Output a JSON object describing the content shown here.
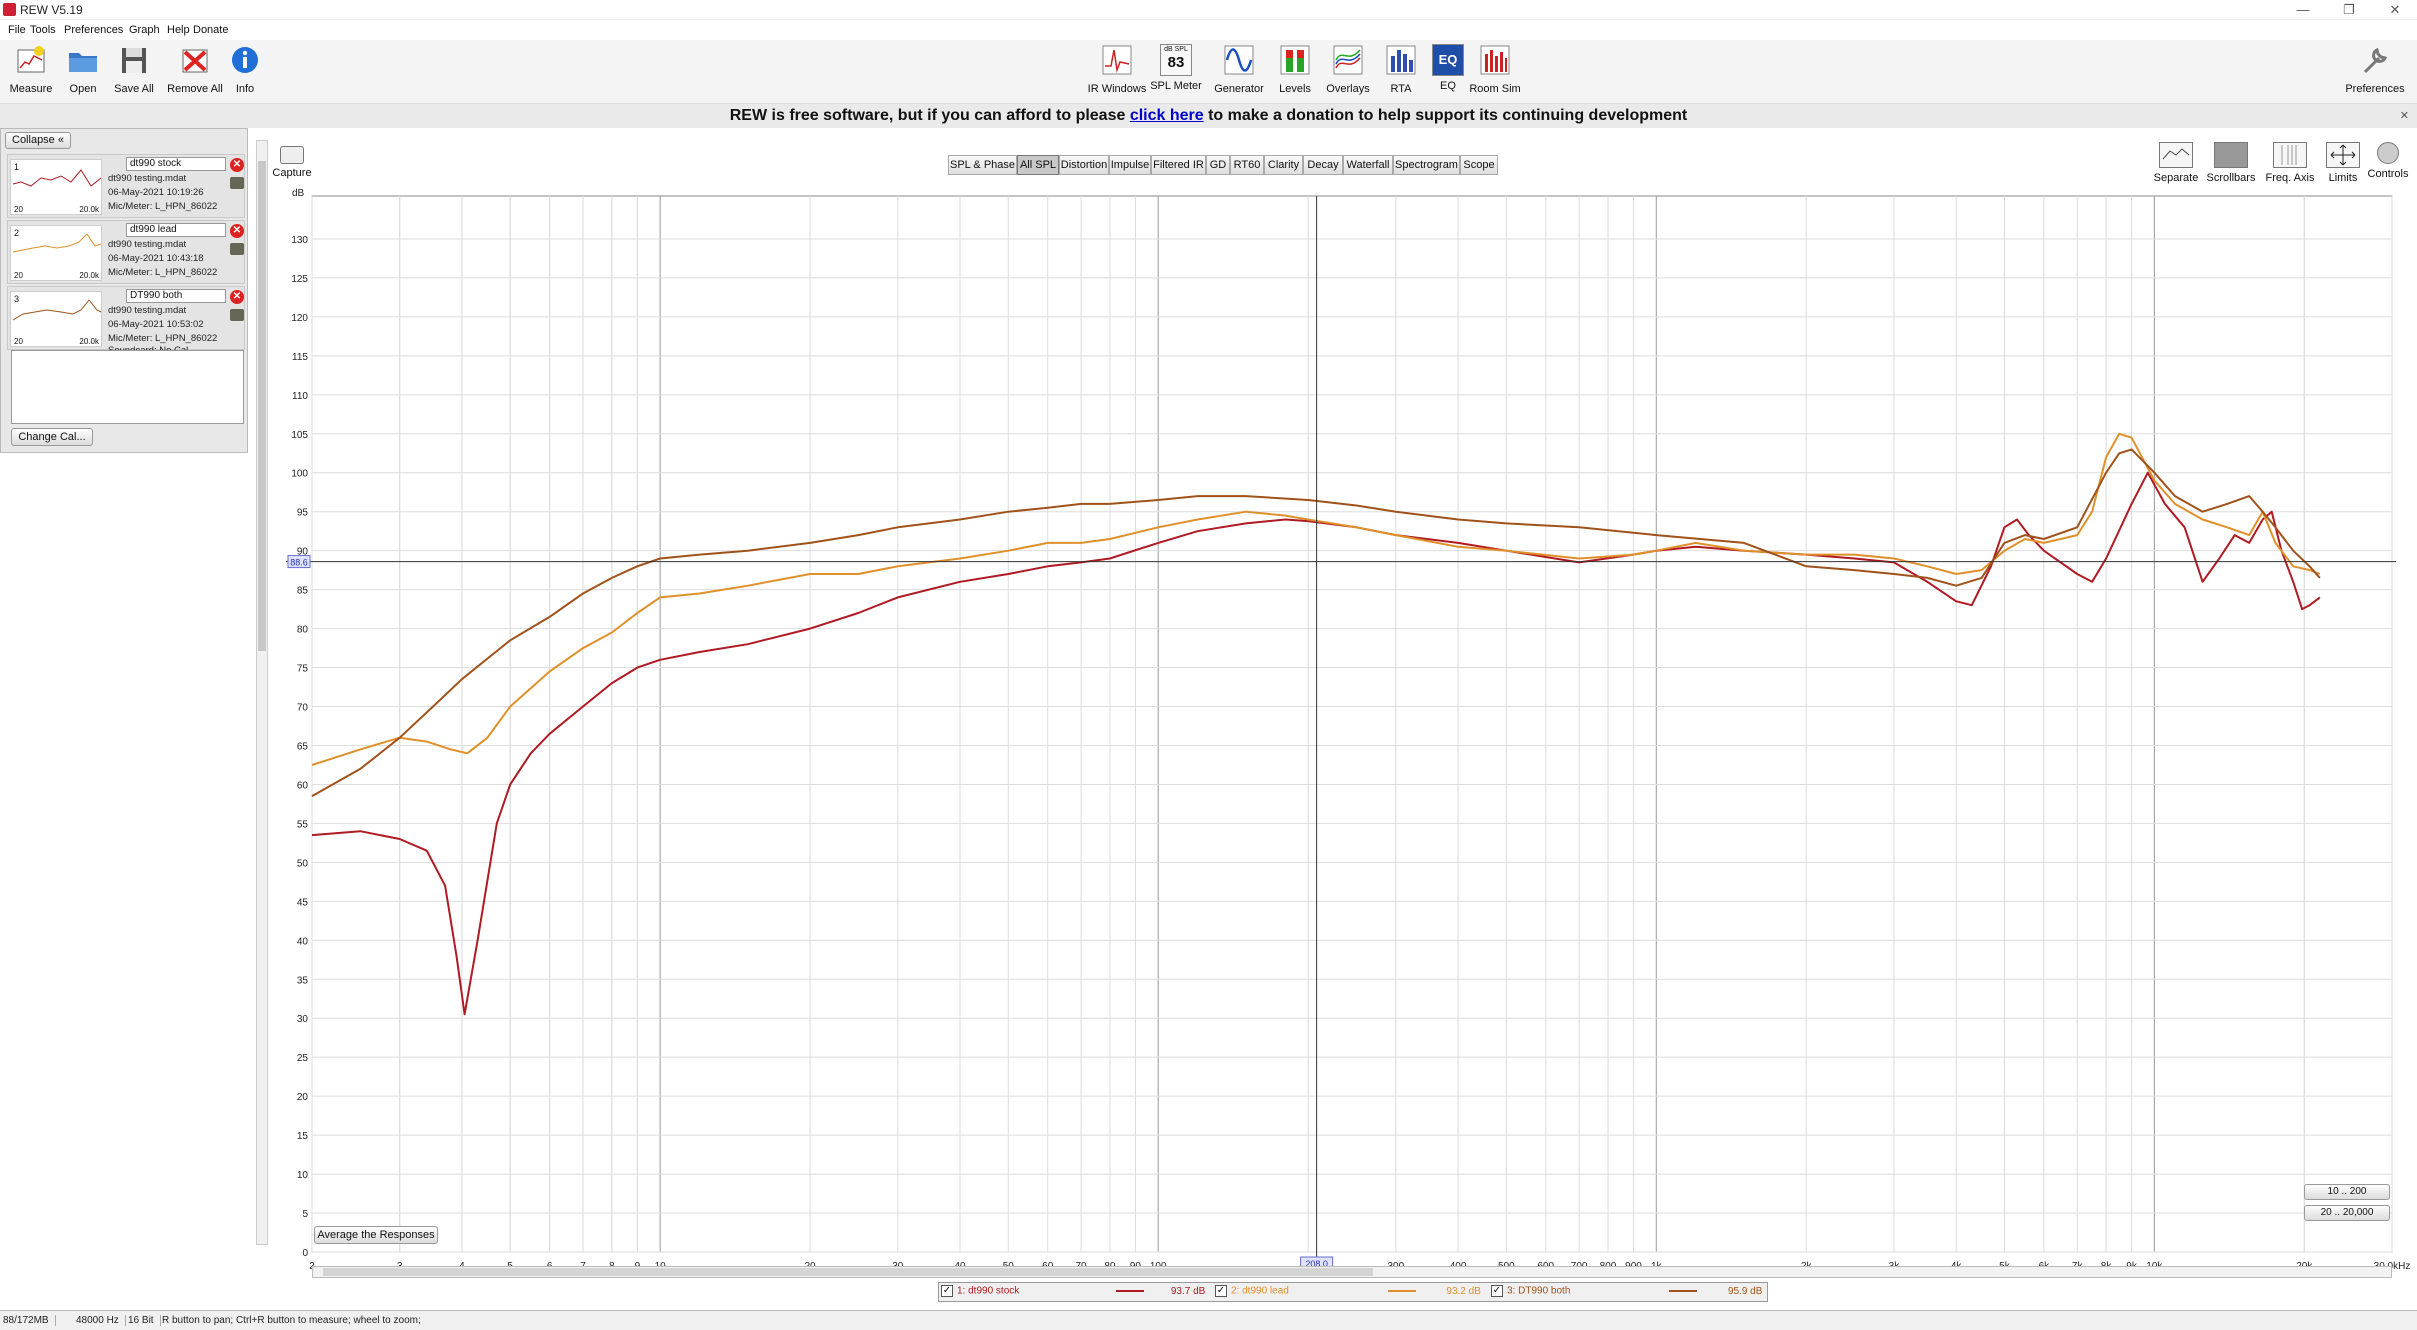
{
  "window": {
    "title": "REW V5.19",
    "controls": [
      "—",
      "❐",
      "✕"
    ]
  },
  "menu": [
    "File",
    "Tools",
    "Preferences",
    "Graph",
    "Help",
    "Donate"
  ],
  "toolbar_left": [
    {
      "label": "Measure",
      "icon": "measure-icon"
    },
    {
      "label": "Open",
      "icon": "folder-icon"
    },
    {
      "label": "Save All",
      "icon": "save-icon"
    },
    {
      "label": "Remove All",
      "icon": "remove-icon"
    },
    {
      "label": "Info",
      "icon": "info-icon"
    }
  ],
  "toolbar_center": [
    {
      "label": "IR Windows",
      "icon": "ir-windows-icon"
    },
    {
      "label": "SPL Meter",
      "icon": "spl-meter-icon",
      "badge_top": "dB SPL",
      "badge": "83"
    },
    {
      "label": "Generator",
      "icon": "generator-icon"
    },
    {
      "label": "Levels",
      "icon": "levels-icon"
    },
    {
      "label": "Overlays",
      "icon": "overlays-icon"
    },
    {
      "label": "RTA",
      "icon": "rta-icon"
    },
    {
      "label": "EQ",
      "icon": "eq-icon"
    },
    {
      "label": "Room Sim",
      "icon": "room-sim-icon"
    }
  ],
  "toolbar_right": {
    "label": "Preferences",
    "icon": "wrench-icon"
  },
  "banner": {
    "before": "REW is free software, but if you can afford to please ",
    "link": "click here",
    "after": " to make a donation to help support its continuing development"
  },
  "left_panel": {
    "collapse_label": "Collapse",
    "measurements": [
      {
        "index": "1",
        "name": "dt990 stock",
        "file": "dt990 testing.mdat",
        "date": "06-May-2021 10:19:26",
        "mic": "Mic/Meter: L_HPN_86022",
        "thumb_lo": "20",
        "thumb_hi": "20.0k",
        "color": "#b01a22"
      },
      {
        "index": "2",
        "name": "dt990 lead",
        "file": "dt990 testing.mdat",
        "date": "06-May-2021 10:43:18",
        "mic": "Mic/Meter: L_HPN_86022",
        "thumb_lo": "20",
        "thumb_hi": "20.0k",
        "color": "#e0902a"
      },
      {
        "index": "3",
        "name": "DT990 both",
        "file": "dt990 testing.mdat",
        "date": "06-May-2021 10:53:02",
        "mic": "Mic/Meter: L_HPN_86022",
        "soundcard": "Soundcard: No Cal",
        "thumb_lo": "20",
        "thumb_hi": "20.0k",
        "color": "#a0521a"
      }
    ],
    "change_cal_label": "Change Cal..."
  },
  "capture_label": "Capture",
  "plot_tabs": [
    "SPL & Phase",
    "All SPL",
    "Distortion",
    "Impulse",
    "Filtered IR",
    "GD",
    "RT60",
    "Clarity",
    "Decay",
    "Waterfall",
    "Spectrogram",
    "Scope"
  ],
  "active_tab": "All SPL",
  "right_tools": [
    {
      "label": "Separate",
      "icon": "separate-icon"
    },
    {
      "label": "Scrollbars",
      "icon": "scrollbars-icon"
    },
    {
      "label": "Freq. Axis",
      "icon": "freq-axis-icon"
    },
    {
      "label": "Limits",
      "icon": "limits-icon"
    },
    {
      "label": "Controls",
      "icon": "controls-icon"
    }
  ],
  "graph_buttons": {
    "average": "Average the Responses",
    "range1": "10 .. 200",
    "range2": "20 .. 20,000"
  },
  "cursor": {
    "level_label": "88.6",
    "freq_label": "208.0"
  },
  "chart_data": {
    "type": "line",
    "ylabel": "dB",
    "xlog": true,
    "xlim": [
      2,
      30000
    ],
    "ylim": [
      0,
      135
    ],
    "yticks": [
      0,
      5,
      10,
      15,
      20,
      25,
      30,
      35,
      40,
      45,
      50,
      55,
      60,
      65,
      70,
      75,
      80,
      85,
      90,
      95,
      100,
      105,
      110,
      115,
      120,
      125,
      130
    ],
    "xticks": [
      {
        "v": 2,
        "l": "2"
      },
      {
        "v": 3,
        "l": "3"
      },
      {
        "v": 4,
        "l": "4"
      },
      {
        "v": 5,
        "l": "5"
      },
      {
        "v": 6,
        "l": "6"
      },
      {
        "v": 7,
        "l": "7"
      },
      {
        "v": 8,
        "l": "8"
      },
      {
        "v": 9,
        "l": "9"
      },
      {
        "v": 10,
        "l": "10"
      },
      {
        "v": 20,
        "l": "20"
      },
      {
        "v": 30,
        "l": "30"
      },
      {
        "v": 40,
        "l": "40"
      },
      {
        "v": 50,
        "l": "50"
      },
      {
        "v": 60,
        "l": "60"
      },
      {
        "v": 70,
        "l": "70"
      },
      {
        "v": 80,
        "l": "80"
      },
      {
        "v": 90,
        "l": "90"
      },
      {
        "v": 100,
        "l": "100"
      },
      {
        "v": 300,
        "l": "300"
      },
      {
        "v": 400,
        "l": "400"
      },
      {
        "v": 500,
        "l": "500"
      },
      {
        "v": 600,
        "l": "600"
      },
      {
        "v": 700,
        "l": "700"
      },
      {
        "v": 800,
        "l": "800"
      },
      {
        "v": 900,
        "l": "900"
      },
      {
        "v": 1000,
        "l": "1k"
      },
      {
        "v": 2000,
        "l": "2k"
      },
      {
        "v": 3000,
        "l": "3k"
      },
      {
        "v": 4000,
        "l": "4k"
      },
      {
        "v": 5000,
        "l": "5k"
      },
      {
        "v": 6000,
        "l": "6k"
      },
      {
        "v": 7000,
        "l": "7k"
      },
      {
        "v": 8000,
        "l": "8k"
      },
      {
        "v": 9000,
        "l": "9k"
      },
      {
        "v": 10000,
        "l": "10k"
      },
      {
        "v": 20000,
        "l": "20k"
      },
      {
        "v": 30000,
        "l": "30.0kHz"
      }
    ],
    "cursor_level": 88.6,
    "cursor_freq": 208,
    "series": [
      {
        "name": "1: dt990 stock",
        "level": "93.7 dB",
        "color": "#b01a22",
        "points": [
          [
            2,
            53.5
          ],
          [
            2.5,
            54
          ],
          [
            3,
            53
          ],
          [
            3.4,
            51.5
          ],
          [
            3.7,
            47
          ],
          [
            3.9,
            38
          ],
          [
            4.05,
            30.5
          ],
          [
            4.3,
            40
          ],
          [
            4.7,
            55
          ],
          [
            5,
            60
          ],
          [
            5.5,
            64
          ],
          [
            6,
            66.5
          ],
          [
            7,
            70
          ],
          [
            8,
            73
          ],
          [
            9,
            75
          ],
          [
            10,
            76
          ],
          [
            12,
            77
          ],
          [
            15,
            78
          ],
          [
            20,
            80
          ],
          [
            25,
            82
          ],
          [
            30,
            84
          ],
          [
            40,
            86
          ],
          [
            50,
            87
          ],
          [
            60,
            88
          ],
          [
            70,
            88.5
          ],
          [
            80,
            89
          ],
          [
            100,
            91
          ],
          [
            120,
            92.5
          ],
          [
            150,
            93.5
          ],
          [
            180,
            94
          ],
          [
            200,
            93.8
          ],
          [
            250,
            93
          ],
          [
            300,
            92
          ],
          [
            400,
            91
          ],
          [
            500,
            90
          ],
          [
            700,
            88.5
          ],
          [
            900,
            89.5
          ],
          [
            1000,
            90
          ],
          [
            1200,
            90.5
          ],
          [
            1500,
            90
          ],
          [
            2000,
            89.5
          ],
          [
            2500,
            89
          ],
          [
            3000,
            88.5
          ],
          [
            3500,
            86
          ],
          [
            4000,
            83.5
          ],
          [
            4300,
            83
          ],
          [
            4700,
            88
          ],
          [
            5000,
            93
          ],
          [
            5300,
            94
          ],
          [
            5600,
            92
          ],
          [
            6000,
            90
          ],
          [
            7000,
            87
          ],
          [
            7500,
            86
          ],
          [
            8000,
            89
          ],
          [
            9000,
            96
          ],
          [
            9700,
            100
          ],
          [
            10500,
            96
          ],
          [
            11500,
            93
          ],
          [
            12500,
            86
          ],
          [
            13500,
            89
          ],
          [
            14500,
            92
          ],
          [
            15500,
            91
          ],
          [
            16500,
            94
          ],
          [
            17200,
            95
          ],
          [
            18000,
            90
          ],
          [
            19000,
            86
          ],
          [
            19800,
            82.5
          ],
          [
            20500,
            83
          ],
          [
            21500,
            84
          ]
        ]
      },
      {
        "name": "2: dt990 lead",
        "level": "93.2 dB",
        "color": "#e0902a",
        "points": [
          [
            2,
            62.5
          ],
          [
            2.5,
            64.5
          ],
          [
            3,
            66
          ],
          [
            3.4,
            65.5
          ],
          [
            3.8,
            64.5
          ],
          [
            4.1,
            64
          ],
          [
            4.5,
            66
          ],
          [
            5,
            70
          ],
          [
            6,
            74.5
          ],
          [
            7,
            77.5
          ],
          [
            8,
            79.5
          ],
          [
            9,
            82
          ],
          [
            10,
            84
          ],
          [
            12,
            84.5
          ],
          [
            15,
            85.5
          ],
          [
            20,
            87
          ],
          [
            25,
            87
          ],
          [
            30,
            88
          ],
          [
            40,
            89
          ],
          [
            50,
            90
          ],
          [
            60,
            91
          ],
          [
            70,
            91
          ],
          [
            80,
            91.5
          ],
          [
            100,
            93
          ],
          [
            120,
            94
          ],
          [
            150,
            95
          ],
          [
            180,
            94.5
          ],
          [
            200,
            94
          ],
          [
            250,
            93
          ],
          [
            300,
            92
          ],
          [
            400,
            90.5
          ],
          [
            500,
            90
          ],
          [
            700,
            89
          ],
          [
            900,
            89.5
          ],
          [
            1000,
            90
          ],
          [
            1200,
            91
          ],
          [
            1500,
            90
          ],
          [
            2000,
            89.5
          ],
          [
            2500,
            89.5
          ],
          [
            3000,
            89
          ],
          [
            3500,
            88
          ],
          [
            4000,
            87
          ],
          [
            4500,
            87.5
          ],
          [
            5000,
            90
          ],
          [
            5500,
            91.5
          ],
          [
            6000,
            91
          ],
          [
            7000,
            92
          ],
          [
            7500,
            95
          ],
          [
            8000,
            102
          ],
          [
            8500,
            105
          ],
          [
            9000,
            104.5
          ],
          [
            10000,
            99
          ],
          [
            11000,
            96
          ],
          [
            12500,
            94
          ],
          [
            14000,
            93
          ],
          [
            15500,
            92
          ],
          [
            16500,
            95
          ],
          [
            17500,
            91
          ],
          [
            19000,
            88
          ],
          [
            20500,
            87.5
          ],
          [
            21500,
            87
          ]
        ]
      },
      {
        "name": "3: DT990 both",
        "level": "95.9 dB",
        "color": "#a0521a",
        "points": [
          [
            2,
            58.5
          ],
          [
            2.5,
            62
          ],
          [
            3,
            66
          ],
          [
            3.5,
            70
          ],
          [
            4,
            73.5
          ],
          [
            5,
            78.5
          ],
          [
            6,
            81.5
          ],
          [
            7,
            84.5
          ],
          [
            8,
            86.5
          ],
          [
            9,
            88
          ],
          [
            10,
            89
          ],
          [
            12,
            89.5
          ],
          [
            15,
            90
          ],
          [
            20,
            91
          ],
          [
            25,
            92
          ],
          [
            30,
            93
          ],
          [
            40,
            94
          ],
          [
            50,
            95
          ],
          [
            60,
            95.5
          ],
          [
            70,
            96
          ],
          [
            80,
            96
          ],
          [
            100,
            96.5
          ],
          [
            120,
            97
          ],
          [
            150,
            97
          ],
          [
            200,
            96.5
          ],
          [
            250,
            95.8
          ],
          [
            300,
            95
          ],
          [
            400,
            94
          ],
          [
            500,
            93.5
          ],
          [
            700,
            93
          ],
          [
            1000,
            92
          ],
          [
            1500,
            91
          ],
          [
            2000,
            88
          ],
          [
            2500,
            87.5
          ],
          [
            3000,
            87
          ],
          [
            3500,
            86.5
          ],
          [
            4000,
            85.5
          ],
          [
            4500,
            86.5
          ],
          [
            5000,
            91
          ],
          [
            5500,
            92
          ],
          [
            6000,
            91.5
          ],
          [
            7000,
            93
          ],
          [
            8000,
            100
          ],
          [
            8500,
            102.5
          ],
          [
            9000,
            103
          ],
          [
            10000,
            100
          ],
          [
            11000,
            97
          ],
          [
            12500,
            95
          ],
          [
            14000,
            96
          ],
          [
            15500,
            97
          ],
          [
            16500,
            95
          ],
          [
            17500,
            93
          ],
          [
            19000,
            90
          ],
          [
            20500,
            88
          ],
          [
            21500,
            86.5
          ]
        ]
      }
    ]
  },
  "status": [
    "88/172MB",
    "48000 Hz",
    "16 Bit",
    "R button to pan; Ctrl+R button to measure; wheel to zoom;"
  ]
}
